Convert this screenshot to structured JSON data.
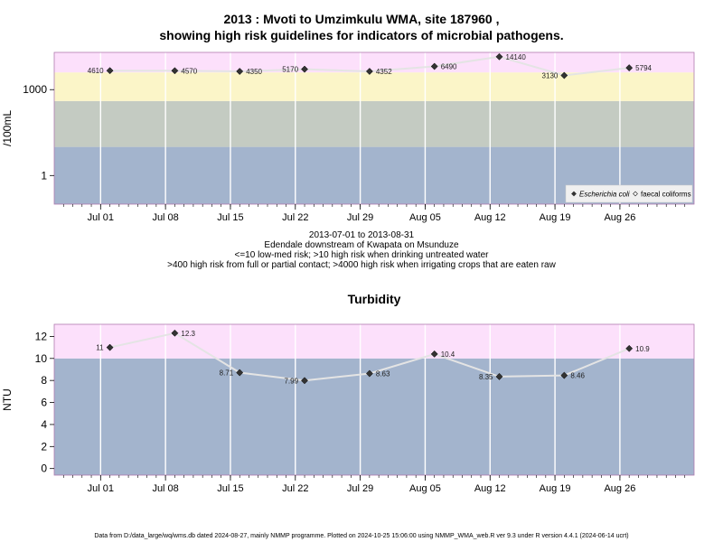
{
  "title_line1": "2013 : Mvoti to Umzimkulu WMA, site 187960 ,",
  "title_line2": "showing high risk guidelines for indicators of microbial pathogens.",
  "subtitle_lines": [
    "2013-07-01 to 2013-08-31",
    "Edendale downstream of Kwapata on Msunduze",
    "<=10 low-med risk; >10 high risk when drinking untreated water",
    ">400 high risk from full or partial contact; >4000 high risk when irrigating crops that are eaten raw"
  ],
  "footer": "Data from D:/data_large/wq/wms.db dated 2024-08-27, mainly NMMP programme. Plotted on 2024-10-25 15:06:00 using NMMP_WMA_web.R ver 9.3 under R version 4.4.1 (2024-06-14 ucrt)",
  "chart_data": [
    {
      "type": "scatter",
      "title": "",
      "ylabel": "/100mL",
      "yscale": "log10",
      "ylim": [
        0.1,
        20000
      ],
      "yticks": [
        1,
        1000
      ],
      "xlim": [
        "2013-06-26",
        "2013-09-03"
      ],
      "xticks": [
        "Jul 01",
        "Jul 08",
        "Jul 15",
        "Jul 22",
        "Jul 29",
        "Aug 05",
        "Aug 12",
        "Aug 19",
        "Aug 26"
      ],
      "xtick_dates": [
        "2013-07-01",
        "2013-07-08",
        "2013-07-15",
        "2013-07-22",
        "2013-07-29",
        "2013-08-05",
        "2013-08-12",
        "2013-08-19",
        "2013-08-26"
      ],
      "bands": [
        {
          "from": 0.1,
          "to": 10,
          "color": "#a3b4cd"
        },
        {
          "from": 10,
          "to": 400,
          "color": "#c4cbc2"
        },
        {
          "from": 400,
          "to": 4000,
          "color": "#fbf5c8"
        },
        {
          "from": 4000,
          "to": 20000,
          "color": "#fce0fb"
        }
      ],
      "grid": true,
      "legend_position": "bottom-right",
      "legend": [
        {
          "label": "Escherichia coli",
          "marker": "filled-diamond"
        },
        {
          "label": "faecal coliforms",
          "marker": "open-diamond"
        }
      ],
      "series": [
        {
          "name": "Escherichia coli",
          "x": [
            "2013-07-02",
            "2013-07-09",
            "2013-07-16",
            "2013-07-23",
            "2013-07-30",
            "2013-08-06",
            "2013-08-13",
            "2013-08-20",
            "2013-08-27"
          ],
          "y": [
            4610,
            4570,
            4350,
            5170,
            4352,
            6490,
            14140,
            3130,
            5794
          ],
          "labels": [
            "4610",
            "4570",
            "4350",
            "5170",
            "4352",
            "6490",
            "14140",
            "3130",
            "5794"
          ],
          "label_side": [
            "left",
            "right",
            "right",
            "left",
            "right",
            "right",
            "right",
            "left",
            "right"
          ]
        }
      ],
      "colors": {
        "marker": "#333333",
        "line": "#e4e4e4",
        "frame": "#b07ab0"
      }
    },
    {
      "type": "scatter",
      "title": "Turbidity",
      "ylabel": "NTU",
      "ylim": [
        -0.6,
        13.1
      ],
      "yticks": [
        0,
        2,
        4,
        6,
        8,
        10,
        12
      ],
      "xlim": [
        "2013-06-26",
        "2013-09-03"
      ],
      "xticks": [
        "Jul 01",
        "Jul 08",
        "Jul 15",
        "Jul 22",
        "Jul 29",
        "Aug 05",
        "Aug 12",
        "Aug 19",
        "Aug 26"
      ],
      "xtick_dates": [
        "2013-07-01",
        "2013-07-08",
        "2013-07-15",
        "2013-07-22",
        "2013-07-29",
        "2013-08-05",
        "2013-08-12",
        "2013-08-19",
        "2013-08-26"
      ],
      "bands": [
        {
          "from": -0.6,
          "to": 10,
          "color": "#a3b4cd"
        },
        {
          "from": 10,
          "to": 13.1,
          "color": "#fce0fb"
        }
      ],
      "grid": true,
      "series": [
        {
          "name": "Turbidity",
          "x": [
            "2013-07-02",
            "2013-07-09",
            "2013-07-16",
            "2013-07-23",
            "2013-07-30",
            "2013-08-06",
            "2013-08-13",
            "2013-08-20",
            "2013-08-27"
          ],
          "y": [
            11,
            12.3,
            8.71,
            7.99,
            8.63,
            10.4,
            8.35,
            8.46,
            10.9
          ],
          "labels": [
            "11",
            "12.3",
            "8.71",
            "7.99",
            "8.63",
            "10.4",
            "8.35",
            "8.46",
            "10.9"
          ],
          "label_side": [
            "left",
            "right",
            "left",
            "left",
            "right",
            "right",
            "left",
            "right",
            "right"
          ]
        }
      ],
      "colors": {
        "marker": "#333333",
        "line": "#e4e4e4",
        "frame": "#b07ab0"
      }
    }
  ]
}
